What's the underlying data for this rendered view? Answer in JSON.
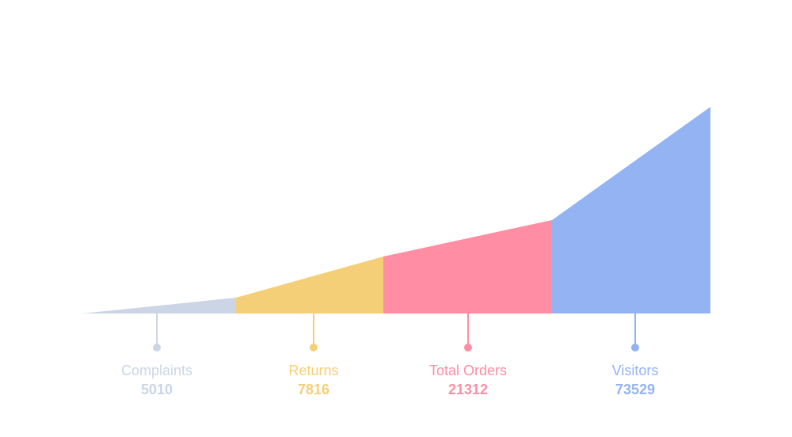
{
  "chart_data": {
    "type": "area",
    "subtype": "funnel",
    "stages": [
      {
        "label": "Complaints",
        "value": "5010",
        "color": "#cbd5e6"
      },
      {
        "label": "Returns",
        "value": "7816",
        "color": "#f5cf78"
      },
      {
        "label": "Total Orders",
        "value": "21312",
        "color": "#ff8da4"
      },
      {
        "label": "Visitors",
        "value": "73529",
        "color": "#93b3f3"
      }
    ]
  }
}
